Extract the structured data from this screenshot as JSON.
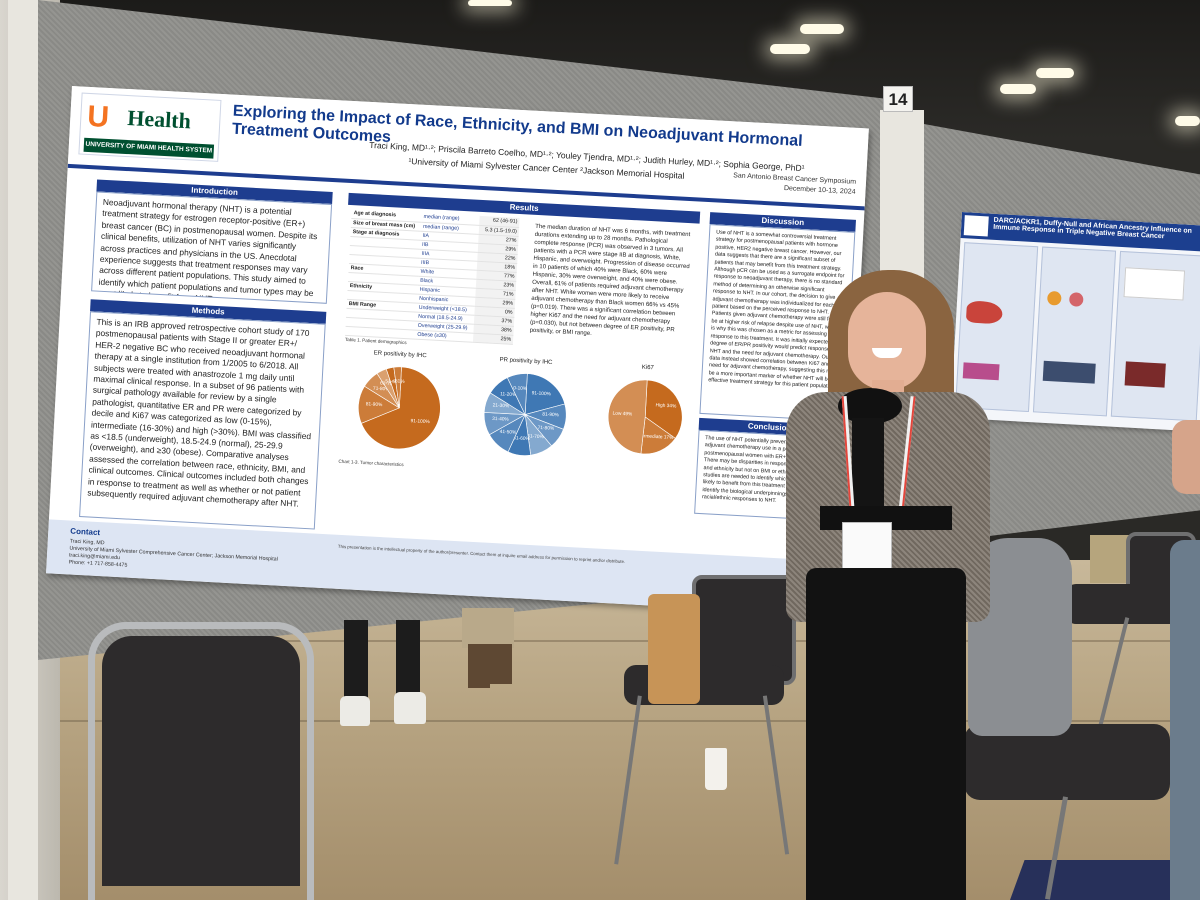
{
  "booth": {
    "board_number": "14"
  },
  "poster": {
    "logo": {
      "mark": "U",
      "word": "Health",
      "tagline": "UNIVERSITY OF MIAMI HEALTH SYSTEM"
    },
    "title": "Exploring the Impact of Race, Ethnicity, and BMI on Neoadjuvant Hormonal Treatment Outcomes",
    "authors": "Traci King, MD¹·²; Priscila Barreto Coelho, MD¹·²; Youley Tjendra, MD¹·²; Judith Hurley, MD¹·²; Sophia George, PhD¹",
    "affiliation": "¹University of Miami Sylvester Cancer Center ²Jackson Memorial Hospital",
    "event": "San Antonio Breast Cancer Symposium",
    "event_dates": "December 10-13, 2024",
    "sections": {
      "introduction": {
        "heading": "Introduction",
        "text": "Neoadjuvant hormonal therapy (NHT) is a potential treatment strategy for estrogen receptor-positive (ER+) breast cancer (BC) in postmenopausal women. Despite its clinical benefits, utilization of NHT varies significantly across practices and physicians in the US. Anecdotal experience suggests that treatment responses may vary across different patient populations. This study aimed to identify which patient populations and tumor types may be most likely to benefit from NHT."
      },
      "methods": {
        "heading": "Methods",
        "text": "This is an IRB approved retrospective cohort study of 170 postmenopausal patients with Stage II or greater ER+/ HER-2 negative BC who received neoadjuvant hormonal therapy at a single institution from 1/2005 to 6/2018. All subjects were treated with anastrozole 1 mg daily until maximal clinical response. In a subset of 96 patients with surgical pathology available for review by a single pathologist, quantitative ER and PR were categorized by decile and Ki67 was categorized as low (0-15%), intermediate (16-30%) and high (>30%). BMI was classified as <18.5 (underweight), 18.5-24.9 (normal), 25-29.9 (overweight), and ≥30 (obese). Comparative analyses assessed the correlation between race, ethnicity, BMI, and clinical outcomes. Clinical outcomes included both changes in response to treatment as well as whether or not patient subsequently required adjuvant chemotherapy after NHT."
      },
      "results": {
        "heading": "Results",
        "table_header": [
          "",
          "median (range)",
          ""
        ],
        "table_rows": [
          [
            "Age at diagnosis",
            "median (range)",
            "62 (46-91)"
          ],
          [
            "Size of breast mass (cm)",
            "median (range)",
            "5.3 (1.5-19.0)"
          ],
          [
            "Stage at diagnosis",
            "IIA",
            "27%"
          ],
          [
            "",
            "IIB",
            "29%"
          ],
          [
            "",
            "IIIA",
            "22%"
          ],
          [
            "",
            "IIIB",
            "18%"
          ],
          [
            "Race",
            "White",
            "77%"
          ],
          [
            "",
            "Black",
            "23%"
          ],
          [
            "Ethnicity",
            "Hispanic",
            "71%"
          ],
          [
            "",
            "Nonhispanic",
            "29%"
          ],
          [
            "BMI Range",
            "Underweight (<18.5)",
            "0%"
          ],
          [
            "",
            "Normal (18.5-24.9)",
            "37%"
          ],
          [
            "",
            "Overweight (25-29.9)",
            "38%"
          ],
          [
            "",
            "Obese (≥30)",
            "25%"
          ]
        ],
        "table_caption": "Table 1. Patient demographics",
        "text": "The median duration of NHT was 6 months, with treatment durations extending up to 28 months. Pathological complete response (PCR) was observed in 3 tumors. All patients with a PCR were stage IIB at diagnosis, White, Hispanic, and overweight. Progression of disease occurred in 10 patients of which 40% were Black, 60% were Hispanic, 30% were overweight, and 40% were obese. Overall, 61% of patients required adjuvant chemotherapy after NHT. White women were more likely to receive adjuvant chemotherapy than Black women 66% vs 45% (p=0.019). There was a significant correlation between higher Ki67 and the need for adjuvant chemotherapy (p=0.030), but not between degree of ER positivity, PR positivity, or BMI range.",
        "chart_caption": "Chart 1-3. Tumor characteristics"
      },
      "discussion": {
        "heading": "Discussion",
        "text": "Use of NHT is a somewhat controversial treatment strategy for postmenopausal patients with hormone positive, HER2 negative breast cancer. However, our data suggests that there are a significant subset of patients that may benefit from this treatment strategy. Although pCR can be used as a surrogate endpoint for response to neoadjuvant therapy, there is no standard method of determining an otherwise significant response to NHT. In our cohort, the decision to give adjuvant chemotherapy was individualized for each patient based on the perceived response to NHT. Patients given adjuvant chemotherapy were still felt to be at higher risk of relapse despite use of NHT, which is why this was chosen as a metric for assessing response to this treatment. It was initially expected that degree of ER/PR positivity would predict response to NHT and the need for adjuvant chemotherapy. Our data instead showed correlation between Ki67 and need for adjuvant chemotherapy, suggesting this may be a more important marker of whether NHT will be an effective treatment strategy for this patient population."
      },
      "conclusions": {
        "heading": "Conclusions",
        "text": "The use of NHT potentially prevented the need for adjuvant chemotherapy use in a percentage of postmenopausal women with ER+/HER-2 negative BC. There may be disparities in response to NHT by race and ethnicity but not on BMI or ethnic group. Additional studies are needed to identify which patients are most likely to benefit from this treatment strategy and to identify the biological underpinnings between racial/ethnic responses to NHT."
      },
      "contact": {
        "heading": "Contact",
        "name": "Traci King, MD",
        "org": "University of Miami Sylvester Comprehensive Cancer Center; Jackson Memorial Hospital",
        "email": "traci.king@miami.edu",
        "phone": "Phone: +1 717-858-4475",
        "note": "This presentation is the intellectual property of the author/presenter. Contact them at inquire email address for permission to reprint and/or distribute."
      }
    },
    "colors": {
      "navy": "#1e3d8f",
      "orange": "#c56a1e",
      "blue": "#3f78b4",
      "logo_orange": "#f47321",
      "logo_green": "#005030"
    }
  },
  "chart_data": [
    {
      "type": "pie",
      "title": "ER positivity by IHC",
      "categories": [
        "91-100%",
        "81-90%",
        "71-80%",
        "61-70%",
        "51-60%",
        "<51%"
      ],
      "values": [
        68,
        15,
        7,
        4,
        3,
        3
      ],
      "color": "#c56a1e"
    },
    {
      "type": "pie",
      "title": "PR positivity by IHC",
      "categories": [
        "91-100%",
        "81-90%",
        "71-80%",
        "61-70%",
        "51-60%",
        "41-50%",
        "31-40%",
        "21-30%",
        "11-20%",
        "0-10%"
      ],
      "values": [
        20,
        10,
        8,
        9,
        9,
        10,
        9,
        8,
        9,
        8
      ],
      "color": "#3f78b4"
    },
    {
      "type": "pie",
      "title": "Ki67",
      "categories": [
        "High",
        "Intermediate",
        "Low"
      ],
      "labels": [
        "High 34%",
        "Intermediate 17%",
        "Low 49%"
      ],
      "values": [
        34,
        17,
        49
      ],
      "color": "#c56a1e"
    }
  ],
  "neighbor_poster": {
    "title": "DARC/ACKR1, Duffy-Null and African Ancestry Influence on Immune Response in Triple Negative Breast Cancer"
  }
}
